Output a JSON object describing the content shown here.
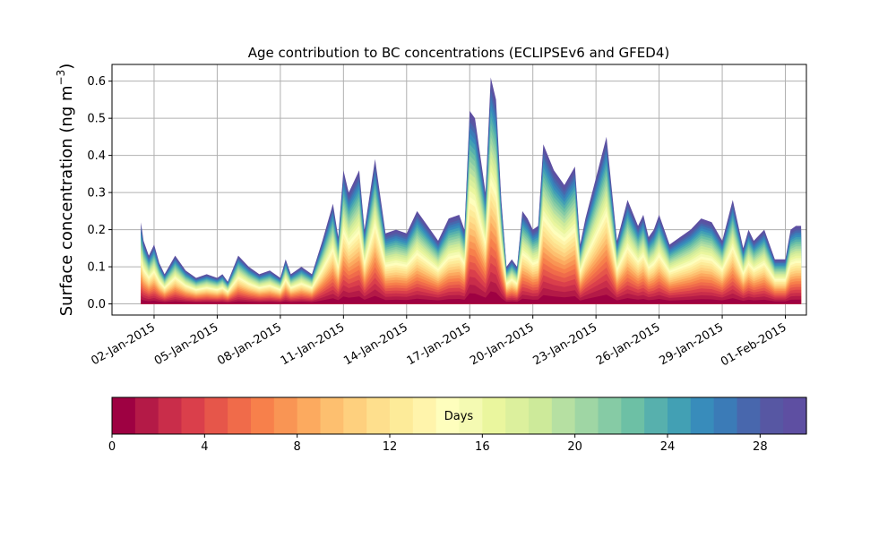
{
  "chart_data": [
    {
      "type": "area",
      "title": "Age contribution to BC concentrations (ECLIPSEv6 and GFED4)",
      "ylabel": "Surface concentration (ng m",
      "ylabel_exponent": "−3",
      "ylabel_close": ")",
      "ylim": [
        -0.03,
        0.645
      ],
      "yticks": [
        0.0,
        0.1,
        0.2,
        0.3,
        0.4,
        0.5,
        0.6
      ],
      "ytick_labels": [
        "0.0",
        "0.1",
        "0.2",
        "0.3",
        "0.4",
        "0.5",
        "0.6"
      ],
      "xlim": [
        "2014-12-31",
        "2015-02-02"
      ],
      "xticks": [
        "2015-01-02",
        "2015-01-05",
        "2015-01-08",
        "2015-01-11",
        "2015-01-14",
        "2015-01-17",
        "2015-01-20",
        "2015-01-23",
        "2015-01-26",
        "2015-01-29",
        "2015-02-01"
      ],
      "xtick_labels": [
        "02-Jan-2015",
        "05-Jan-2015",
        "08-Jan-2015",
        "11-Jan-2015",
        "14-Jan-2015",
        "17-Jan-2015",
        "20-Jan-2015",
        "23-Jan-2015",
        "26-Jan-2015",
        "29-Jan-2015",
        "01-Feb-2015"
      ],
      "grid": true,
      "stacked_series": "age classes 0–30 days",
      "total_series": {
        "x": [
          "2015-01-01T09:00",
          "2015-01-01T12:00",
          "2015-01-01T18:00",
          "2015-01-02T00:00",
          "2015-01-02T06:00",
          "2015-01-02T12:00",
          "2015-01-03T00:00",
          "2015-01-03T12:00",
          "2015-01-04T00:00",
          "2015-01-04T12:00",
          "2015-01-05T00:00",
          "2015-01-05T06:00",
          "2015-01-05T12:00",
          "2015-01-06T00:00",
          "2015-01-06T12:00",
          "2015-01-07T00:00",
          "2015-01-07T12:00",
          "2015-01-08T00:00",
          "2015-01-08T06:00",
          "2015-01-08T12:00",
          "2015-01-09T00:00",
          "2015-01-09T12:00",
          "2015-01-10T00:00",
          "2015-01-10T12:00",
          "2015-01-10T18:00",
          "2015-01-11T00:00",
          "2015-01-11T06:00",
          "2015-01-11T12:00",
          "2015-01-11T18:00",
          "2015-01-12T00:00",
          "2015-01-12T12:00",
          "2015-01-13T00:00",
          "2015-01-13T12:00",
          "2015-01-14T00:00",
          "2015-01-14T12:00",
          "2015-01-15T00:00",
          "2015-01-15T12:00",
          "2015-01-16T00:00",
          "2015-01-16T12:00",
          "2015-01-16T18:00",
          "2015-01-17T00:00",
          "2015-01-17T06:00",
          "2015-01-17T12:00",
          "2015-01-17T18:00",
          "2015-01-18T00:00",
          "2015-01-18T06:00",
          "2015-01-18T12:00",
          "2015-01-18T18:00",
          "2015-01-19T00:00",
          "2015-01-19T06:00",
          "2015-01-19T12:00",
          "2015-01-19T18:00",
          "2015-01-20T00:00",
          "2015-01-20T06:00",
          "2015-01-20T12:00",
          "2015-01-21T00:00",
          "2015-01-21T12:00",
          "2015-01-22T00:00",
          "2015-01-22T06:00",
          "2015-01-22T12:00",
          "2015-01-23T00:00",
          "2015-01-23T12:00",
          "2015-01-24T00:00",
          "2015-01-24T12:00",
          "2015-01-25T00:00",
          "2015-01-25T06:00",
          "2015-01-25T12:00",
          "2015-01-25T18:00",
          "2015-01-26T00:00",
          "2015-01-26T12:00",
          "2015-01-27T00:00",
          "2015-01-27T12:00",
          "2015-01-28T00:00",
          "2015-01-28T12:00",
          "2015-01-29T00:00",
          "2015-01-29T12:00",
          "2015-01-30T00:00",
          "2015-01-30T06:00",
          "2015-01-30T12:00",
          "2015-01-31T00:00",
          "2015-01-31T12:00",
          "2015-02-01T00:00",
          "2015-02-01T06:00",
          "2015-02-01T12:00",
          "2015-02-01T18:00"
        ],
        "values": [
          0.22,
          0.17,
          0.13,
          0.16,
          0.11,
          0.08,
          0.13,
          0.09,
          0.07,
          0.08,
          0.07,
          0.08,
          0.06,
          0.13,
          0.1,
          0.08,
          0.09,
          0.07,
          0.12,
          0.08,
          0.1,
          0.08,
          0.17,
          0.27,
          0.18,
          0.36,
          0.3,
          0.33,
          0.36,
          0.2,
          0.39,
          0.19,
          0.2,
          0.19,
          0.25,
          0.21,
          0.17,
          0.23,
          0.24,
          0.2,
          0.52,
          0.5,
          0.4,
          0.3,
          0.61,
          0.55,
          0.28,
          0.1,
          0.12,
          0.1,
          0.25,
          0.23,
          0.2,
          0.21,
          0.43,
          0.36,
          0.32,
          0.37,
          0.16,
          0.23,
          0.34,
          0.45,
          0.17,
          0.28,
          0.21,
          0.24,
          0.18,
          0.2,
          0.24,
          0.16,
          0.18,
          0.2,
          0.23,
          0.22,
          0.17,
          0.28,
          0.15,
          0.2,
          0.17,
          0.2,
          0.12,
          0.12,
          0.2,
          0.21,
          0.21
        ]
      }
    },
    {
      "type": "heatmap",
      "label": "Days",
      "range": [
        0,
        30
      ],
      "ticks": [
        0,
        4,
        8,
        12,
        16,
        20,
        24,
        28
      ],
      "tick_labels": [
        "0",
        "4",
        "8",
        "12",
        "16",
        "20",
        "24",
        "28"
      ],
      "colormap": "Spectral",
      "colors": [
        "#9e0142",
        "#b41a47",
        "#c92d4a",
        "#da3f4b",
        "#e6564a",
        "#f06b4a",
        "#f7804b",
        "#f99554",
        "#fcaa5f",
        "#fdbf6f",
        "#fed07e",
        "#fedf8d",
        "#fdeb99",
        "#fff4ab",
        "#fefebd",
        "#f4fab2",
        "#eaf69e",
        "#dcf09d",
        "#cdea9a",
        "#b6e0a2",
        "#9fd6a4",
        "#86cba5",
        "#6dc0a5",
        "#57b0ad",
        "#42a0b4",
        "#388cbb",
        "#3b7bb7",
        "#4867ad",
        "#5757a3",
        "#5e4fa2"
      ]
    }
  ]
}
